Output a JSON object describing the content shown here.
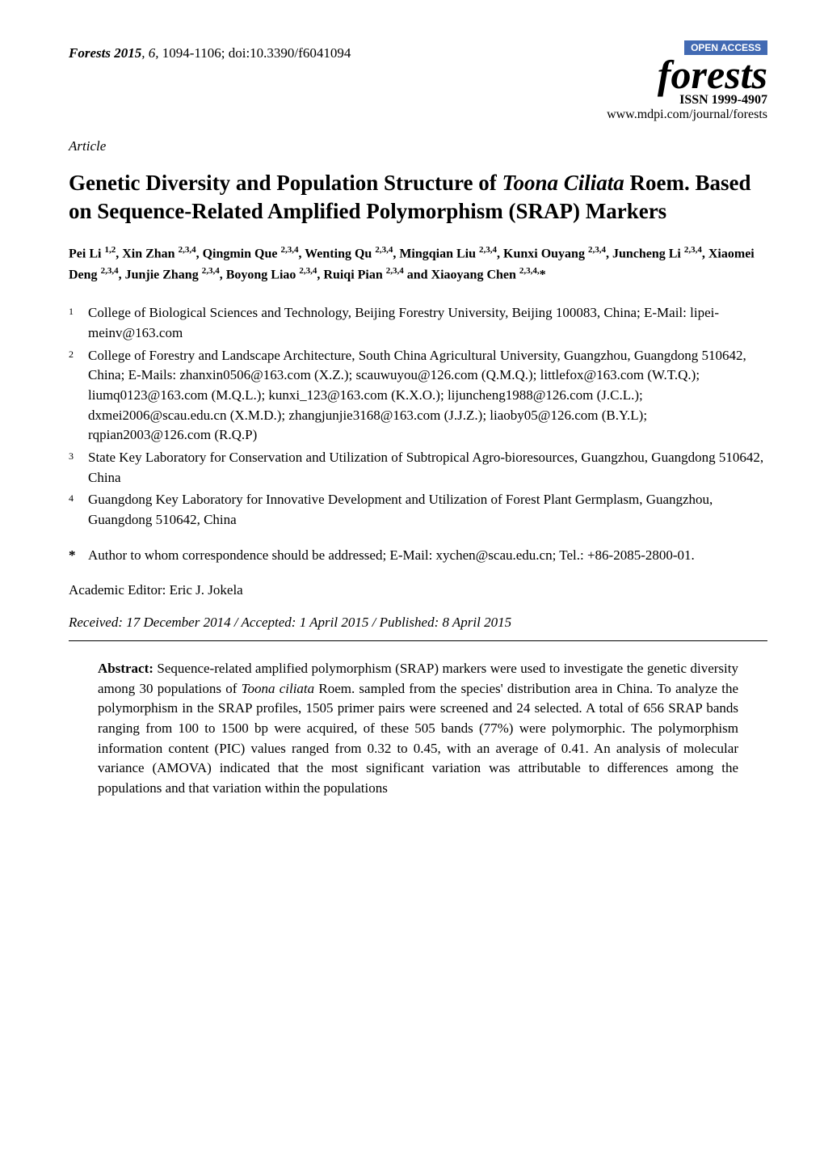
{
  "header": {
    "journal_name": "Forests",
    "year": "2015",
    "volume": "6",
    "pages": "1094-1106",
    "doi": "doi:10.3390/f6041094",
    "open_access": "OPEN ACCESS",
    "logo_text": "forests",
    "issn": "ISSN 1999-4907",
    "url": "www.mdpi.com/journal/forests"
  },
  "article_type": "Article",
  "title": {
    "prefix": "Genetic Diversity and Population Structure of ",
    "italic": "Toona Ciliata",
    "suffix": " Roem. Based on Sequence-Related Amplified Polymorphism (SRAP) Markers"
  },
  "authors_html": "Pei Li <sup>1,2</sup>, Xin Zhan <sup>2,3,4</sup>, Qingmin Que <sup>2,3,4</sup>, Wenting Qu <sup>2,3,4</sup>, Mingqian Liu <sup>2,3,4</sup>, Kunxi Ouyang <sup>2,3,4</sup>, Juncheng Li <sup>2,3,4</sup>, Xiaomei Deng <sup>2,3,4</sup>, Junjie Zhang <sup>2,3,4</sup>, Boyong Liao <sup>2,3,4</sup>, Ruiqi Pian <sup>2,3,4</sup> and Xiaoyang Chen <sup>2,3,4,</sup>*",
  "affiliations": [
    {
      "num": "1",
      "text": "College of Biological Sciences and Technology, Beijing Forestry University, Beijing 100083, China; E-Mail: lipei-meinv@163.com"
    },
    {
      "num": "2",
      "text": "College of Forestry and Landscape Architecture, South China Agricultural University, Guangzhou, Guangdong 510642, China; E-Mails: zhanxin0506@163.com (X.Z.); scauwuyou@126.com (Q.M.Q.); littlefox@163.com (W.T.Q.); liumq0123@163.com (M.Q.L.); kunxi_123@163.com (K.X.O.); lijuncheng1988@126.com (J.C.L.); dxmei2006@scau.edu.cn (X.M.D.); zhangjunjie3168@163.com (J.J.Z.); liaoby05@126.com (B.Y.L); rqpian2003@126.com (R.Q.P)"
    },
    {
      "num": "3",
      "text": "State Key Laboratory for Conservation and Utilization of Subtropical Agro-bioresources, Guangzhou, Guangdong 510642, China"
    },
    {
      "num": "4",
      "text": "Guangdong Key Laboratory for Innovative Development and Utilization of Forest Plant Germplasm, Guangzhou, Guangdong 510642, China"
    }
  ],
  "correspondence": {
    "marker": "*",
    "text": "Author to whom correspondence should be addressed; E-Mail: xychen@scau.edu.cn; Tel.: +86-2085-2800-01."
  },
  "editor": "Academic Editor: Eric J. Jokela",
  "dates": "Received: 17 December 2014 / Accepted: 1 April 2015 / Published: 8 April 2015",
  "abstract": {
    "label": "Abstract:",
    "pre_italic": " Sequence-related amplified polymorphism (SRAP) markers were used to investigate the genetic diversity among 30 populations of ",
    "italic": "Toona ciliata",
    "post_italic": " Roem. sampled from the species' distribution area in China. To analyze the polymorphism in the SRAP profiles, 1505 primer pairs were screened and 24 selected. A total of 656 SRAP bands ranging from 100 to 1500 bp were acquired, of these 505 bands (77%) were polymorphic. The polymorphism information content (PIC) values ranged from 0.32 to 0.45, with an average of 0.41. An analysis of molecular variance (AMOVA) indicated that the most significant variation was attributable to differences among the populations and that variation within the populations"
  },
  "colors": {
    "open_access_bg": "#426ab3",
    "open_access_fg": "#ffffff",
    "text": "#000000",
    "bg": "#ffffff"
  },
  "typography": {
    "body_font": "Times New Roman",
    "title_fontsize_pt": 20,
    "body_fontsize_pt": 12,
    "logo_fontsize_pt": 36
  }
}
